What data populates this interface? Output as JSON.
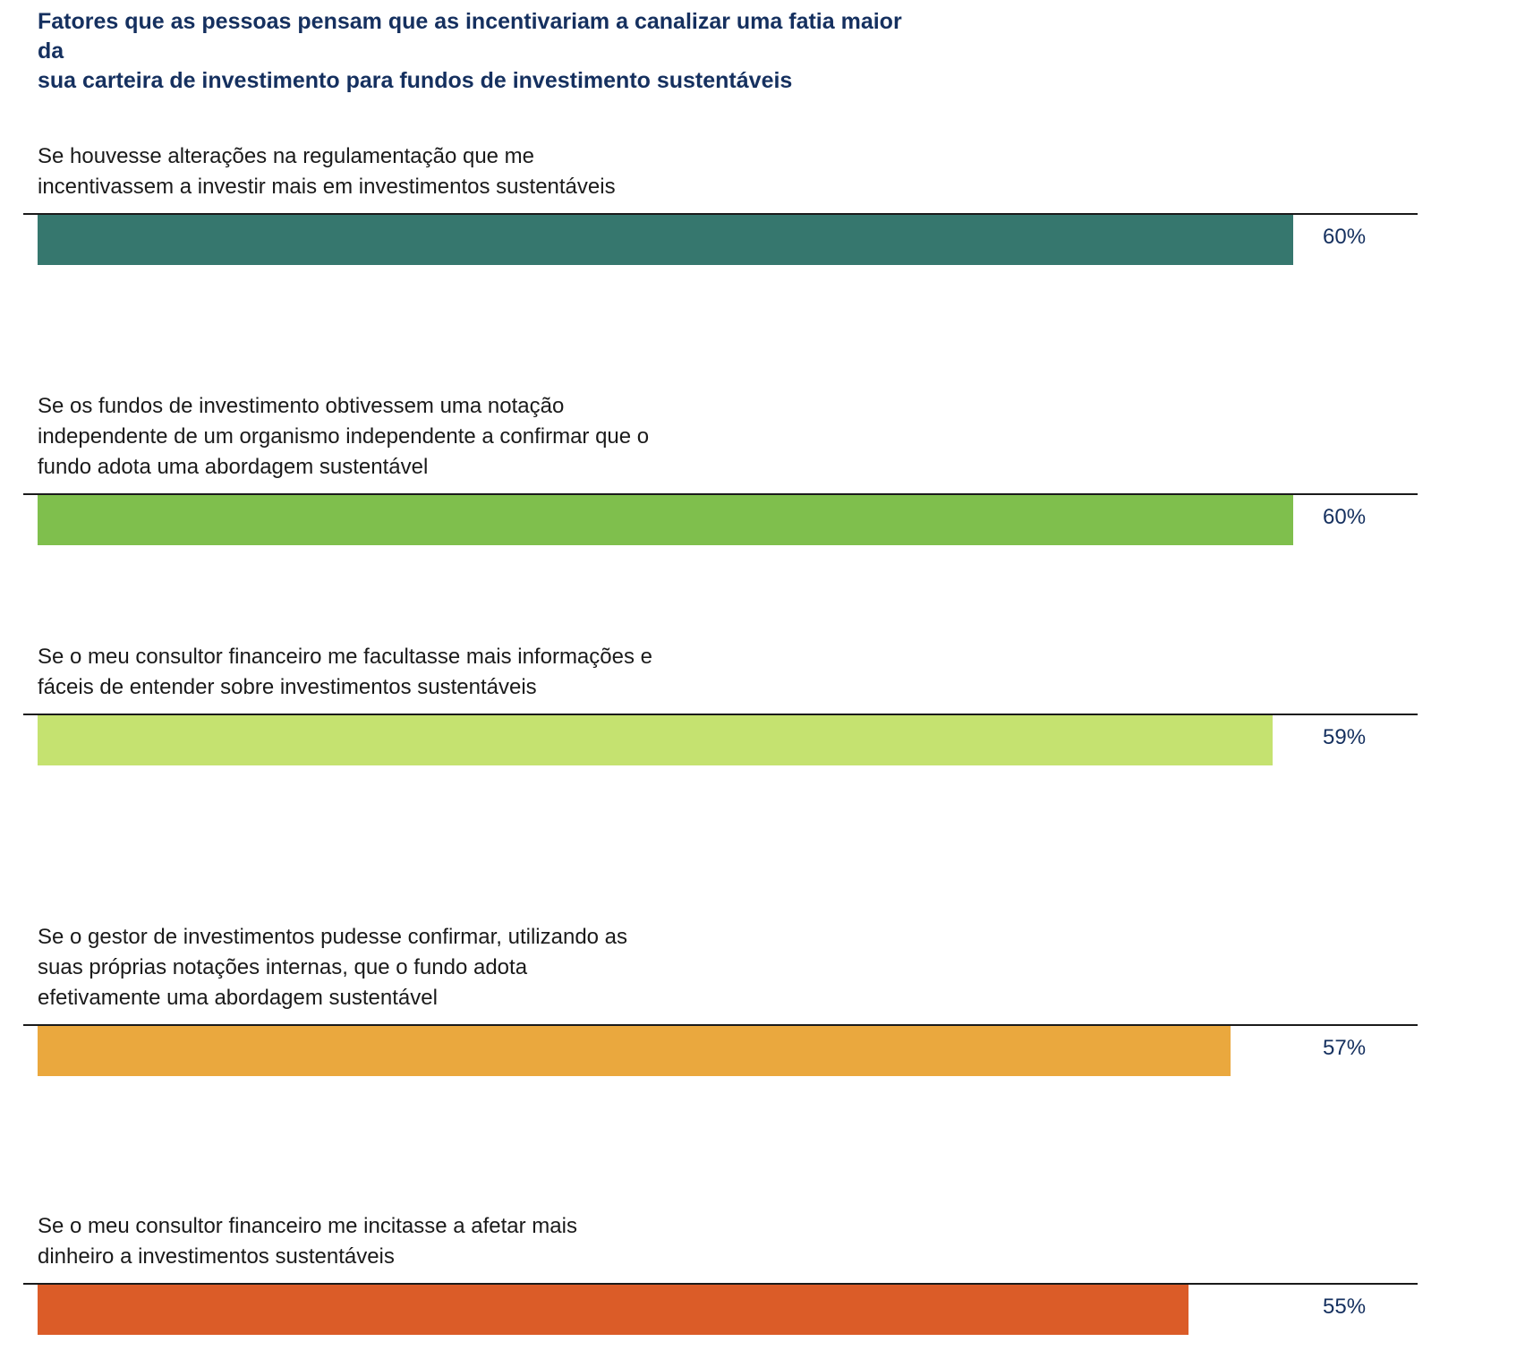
{
  "chart_data": {
    "type": "bar",
    "orientation": "horizontal",
    "title": "Fatores que as pessoas pensam que as incentivariam a canalizar uma fatia maior da\nsua carteira de investimento para fundos de investimento sustentáveis",
    "unit": "%",
    "xlim": [
      0,
      66
    ],
    "grid": false,
    "legend": "none",
    "categories": [
      "Se houvesse alterações na regulamentação que me\nincentivassem a investir mais em investimentos sustentáveis",
      "Se os fundos de investimento obtivessem uma notação\nindependente de um organismo independente a confirmar que o\nfundo adota uma abordagem sustentável",
      "Se o meu consultor financeiro me facultasse mais informações e\nfáceis de entender sobre investimentos sustentáveis",
      "Se o gestor de investimentos pudesse confirmar, utilizando as\nsuas próprias notações internas, que o fundo adota\nefetivamente uma abordagem sustentável",
      "Se o meu consultor financeiro me incitasse a afetar mais\ndinheiro a investimentos sustentáveis"
    ],
    "values": [
      60,
      60,
      59,
      57,
      55
    ],
    "value_labels": [
      "60%",
      "60%",
      "59%",
      "57%",
      "55%"
    ],
    "colors": [
      "#36776e",
      "#7fbf4d",
      "#c5e270",
      "#eaa83e",
      "#db5c28"
    ]
  }
}
